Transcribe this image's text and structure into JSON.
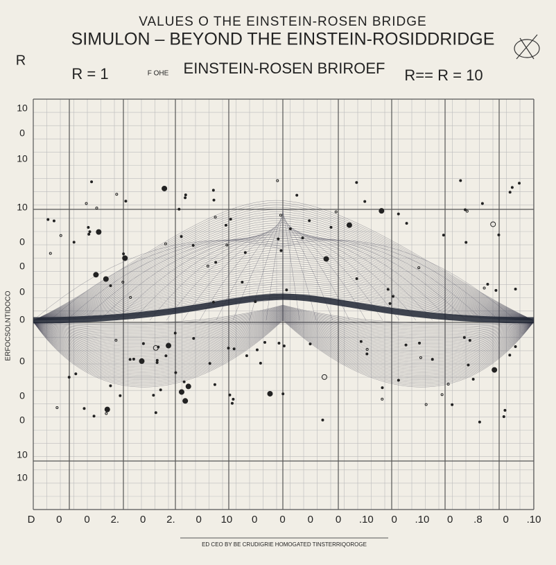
{
  "header": {
    "title": "VALUES O THE EINSTEIN-ROSEN BRIDGE",
    "subtitle": "SIMULON – BEYOND THE EINSTEIN-ROSIDDRIDGE",
    "left_mark": "R",
    "r_left": "R = 1",
    "note": "F OHE",
    "caption": "EINSTEIN-ROSEN BRIROEF",
    "r_right": "R== R = 10"
  },
  "axis": {
    "y_labels": [
      "10",
      "0",
      "10",
      "10",
      "0",
      "0",
      "0",
      "0",
      "0",
      "0",
      "0",
      "10",
      "10"
    ],
    "x_labels": [
      "D",
      "0",
      "0",
      "2.",
      "0",
      "2.",
      "0",
      "10",
      "0",
      "0",
      "0",
      "0",
      ".10",
      "0",
      ".10",
      "0",
      ".8",
      "0",
      ".10"
    ],
    "side_text": "ERFOCSOLNTIDOCO"
  },
  "footer": "ED CEO BY BE CRUDIGRIE HOMOGATED TINSTERRIQOROGE"
}
